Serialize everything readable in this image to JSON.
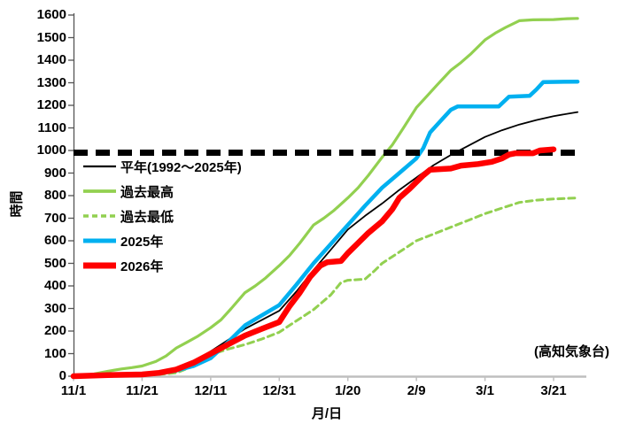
{
  "figure": {
    "annotation": "(高知気象台)",
    "background_color": "#FFFFFF",
    "axis_line_color": "#BFBFBF",
    "y_axis_line_color": "#555555",
    "text_color": "#000000"
  },
  "chart_data": {
    "type": "line",
    "title": "",
    "xlabel": "月/日",
    "ylabel": "時間",
    "ylim": [
      0,
      1600
    ],
    "y_ticks": [
      0,
      100,
      200,
      300,
      400,
      500,
      600,
      700,
      800,
      900,
      1000,
      1100,
      1200,
      1300,
      1400,
      1500,
      1600
    ],
    "x_tick_labels": [
      "11/1",
      "11/21",
      "12/11",
      "12/31",
      "1/20",
      "2/9",
      "3/1",
      "3/21"
    ],
    "x_tick_days": [
      0,
      20,
      40,
      60,
      80,
      100,
      120,
      140
    ],
    "x_range_days": [
      0,
      147
    ],
    "grid": false,
    "legend_position": "inside-upper-left",
    "threshold_line": {
      "value": 990,
      "color": "#000000",
      "style": "dashed",
      "width": 7
    },
    "series": [
      {
        "key": "normal-average",
        "name": "平年(1992～2025年)",
        "color": "#000000",
        "width": 1.8,
        "dash": null,
        "points": [
          [
            0,
            0
          ],
          [
            5,
            2
          ],
          [
            10,
            5
          ],
          [
            15,
            8
          ],
          [
            20,
            12
          ],
          [
            25,
            20
          ],
          [
            30,
            35
          ],
          [
            35,
            65
          ],
          [
            40,
            110
          ],
          [
            45,
            160
          ],
          [
            50,
            210
          ],
          [
            55,
            250
          ],
          [
            60,
            290
          ],
          [
            65,
            375
          ],
          [
            70,
            470
          ],
          [
            75,
            560
          ],
          [
            80,
            650
          ],
          [
            85,
            710
          ],
          [
            90,
            765
          ],
          [
            95,
            825
          ],
          [
            100,
            880
          ],
          [
            105,
            935
          ],
          [
            110,
            980
          ],
          [
            115,
            1020
          ],
          [
            120,
            1060
          ],
          [
            125,
            1090
          ],
          [
            130,
            1115
          ],
          [
            135,
            1135
          ],
          [
            140,
            1152
          ],
          [
            147,
            1170
          ]
        ]
      },
      {
        "key": "record-high",
        "name": "過去最高",
        "color": "#92D050",
        "width": 3.2,
        "dash": null,
        "points": [
          [
            0,
            0
          ],
          [
            3,
            3
          ],
          [
            6,
            10
          ],
          [
            10,
            22
          ],
          [
            14,
            32
          ],
          [
            17,
            38
          ],
          [
            20,
            45
          ],
          [
            24,
            65
          ],
          [
            27,
            90
          ],
          [
            30,
            125
          ],
          [
            33,
            150
          ],
          [
            36,
            175
          ],
          [
            40,
            215
          ],
          [
            43,
            250
          ],
          [
            46,
            300
          ],
          [
            50,
            370
          ],
          [
            53,
            400
          ],
          [
            56,
            435
          ],
          [
            60,
            490
          ],
          [
            63,
            535
          ],
          [
            66,
            590
          ],
          [
            70,
            670
          ],
          [
            73,
            700
          ],
          [
            76,
            735
          ],
          [
            80,
            790
          ],
          [
            83,
            835
          ],
          [
            86,
            890
          ],
          [
            90,
            970
          ],
          [
            93,
            1025
          ],
          [
            96,
            1095
          ],
          [
            100,
            1190
          ],
          [
            103,
            1240
          ],
          [
            106,
            1290
          ],
          [
            110,
            1355
          ],
          [
            113,
            1390
          ],
          [
            116,
            1430
          ],
          [
            120,
            1490
          ],
          [
            123,
            1520
          ],
          [
            126,
            1545
          ],
          [
            130,
            1575
          ],
          [
            134,
            1579
          ],
          [
            140,
            1580
          ],
          [
            144,
            1584
          ],
          [
            147,
            1585
          ]
        ]
      },
      {
        "key": "record-low",
        "name": "過去最低",
        "color": "#92D050",
        "width": 3,
        "dash": "7 5",
        "points": [
          [
            0,
            0
          ],
          [
            10,
            2
          ],
          [
            20,
            5
          ],
          [
            25,
            8
          ],
          [
            30,
            15
          ],
          [
            35,
            45
          ],
          [
            40,
            95
          ],
          [
            45,
            120
          ],
          [
            50,
            140
          ],
          [
            55,
            165
          ],
          [
            60,
            195
          ],
          [
            65,
            245
          ],
          [
            70,
            295
          ],
          [
            75,
            360
          ],
          [
            78,
            415
          ],
          [
            80,
            425
          ],
          [
            85,
            430
          ],
          [
            88,
            470
          ],
          [
            90,
            500
          ],
          [
            95,
            550
          ],
          [
            100,
            600
          ],
          [
            105,
            630
          ],
          [
            110,
            660
          ],
          [
            115,
            690
          ],
          [
            120,
            720
          ],
          [
            125,
            745
          ],
          [
            130,
            770
          ],
          [
            135,
            780
          ],
          [
            140,
            785
          ],
          [
            147,
            790
          ]
        ]
      },
      {
        "key": "year-2025",
        "name": "2025年",
        "color": "#00B0F0",
        "width": 4.5,
        "dash": null,
        "points": [
          [
            0,
            0
          ],
          [
            10,
            3
          ],
          [
            20,
            5
          ],
          [
            25,
            12
          ],
          [
            30,
            25
          ],
          [
            35,
            45
          ],
          [
            40,
            80
          ],
          [
            45,
            150
          ],
          [
            50,
            225
          ],
          [
            55,
            270
          ],
          [
            60,
            315
          ],
          [
            65,
            405
          ],
          [
            70,
            500
          ],
          [
            75,
            585
          ],
          [
            80,
            670
          ],
          [
            85,
            755
          ],
          [
            90,
            835
          ],
          [
            95,
            900
          ],
          [
            100,
            965
          ],
          [
            102,
            1010
          ],
          [
            104,
            1080
          ],
          [
            107,
            1130
          ],
          [
            110,
            1180
          ],
          [
            112,
            1195
          ],
          [
            124,
            1195
          ],
          [
            127,
            1238
          ],
          [
            133,
            1242
          ],
          [
            135,
            1270
          ],
          [
            137,
            1303
          ],
          [
            147,
            1305
          ]
        ]
      },
      {
        "key": "year-2026",
        "name": "2026年",
        "color": "#FF0000",
        "width": 6.5,
        "dash": null,
        "points": [
          [
            0,
            0
          ],
          [
            10,
            5
          ],
          [
            20,
            8
          ],
          [
            25,
            15
          ],
          [
            30,
            30
          ],
          [
            35,
            60
          ],
          [
            40,
            100
          ],
          [
            45,
            140
          ],
          [
            50,
            180
          ],
          [
            55,
            210
          ],
          [
            60,
            240
          ],
          [
            63,
            310
          ],
          [
            66,
            370
          ],
          [
            69,
            440
          ],
          [
            72,
            490
          ],
          [
            74,
            505
          ],
          [
            78,
            510
          ],
          [
            80,
            545
          ],
          [
            83,
            590
          ],
          [
            86,
            635
          ],
          [
            90,
            686
          ],
          [
            93,
            740
          ],
          [
            95,
            790
          ],
          [
            98,
            830
          ],
          [
            100,
            860
          ],
          [
            102,
            890
          ],
          [
            104,
            915
          ],
          [
            110,
            920
          ],
          [
            113,
            933
          ],
          [
            118,
            940
          ],
          [
            122,
            950
          ],
          [
            125,
            965
          ],
          [
            127,
            982
          ],
          [
            129,
            988
          ],
          [
            134,
            988
          ],
          [
            136,
            1000
          ],
          [
            140,
            1005
          ]
        ]
      }
    ]
  }
}
